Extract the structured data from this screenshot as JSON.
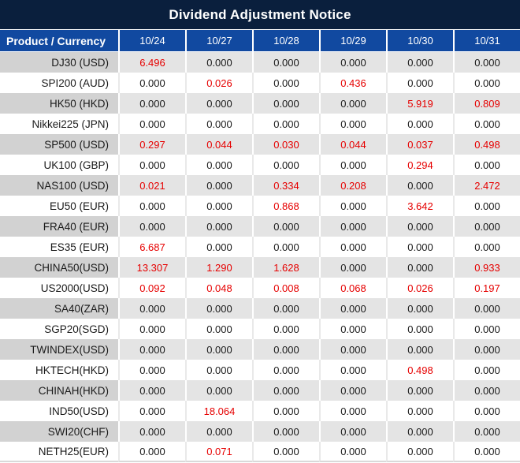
{
  "title": "Dividend Adjustment Notice",
  "colors": {
    "title_bg": "#0a1f3d",
    "header_bg": "#1149a0",
    "header_text": "#ffffff",
    "row_gray_label": "#d2d2d2",
    "row_gray_value": "#e4e4e4",
    "row_white": "#ffffff",
    "value_red": "#e60000",
    "text_dark": "#1a1a1a"
  },
  "table": {
    "product_header": "Product / Currency",
    "date_columns": [
      "10/24",
      "10/27",
      "10/28",
      "10/29",
      "10/30",
      "10/31"
    ],
    "rows": [
      {
        "label": "DJ30 (USD)",
        "cells": [
          {
            "v": "6.496",
            "red": true
          },
          {
            "v": "0.000",
            "red": false
          },
          {
            "v": "0.000",
            "red": false
          },
          {
            "v": "0.000",
            "red": false
          },
          {
            "v": "0.000",
            "red": false
          },
          {
            "v": "0.000",
            "red": false
          }
        ]
      },
      {
        "label": "SPI200 (AUD)",
        "cells": [
          {
            "v": "0.000",
            "red": false
          },
          {
            "v": "0.026",
            "red": true
          },
          {
            "v": "0.000",
            "red": false
          },
          {
            "v": "0.436",
            "red": true
          },
          {
            "v": "0.000",
            "red": false
          },
          {
            "v": "0.000",
            "red": false
          }
        ]
      },
      {
        "label": "HK50 (HKD)",
        "cells": [
          {
            "v": "0.000",
            "red": false
          },
          {
            "v": "0.000",
            "red": false
          },
          {
            "v": "0.000",
            "red": false
          },
          {
            "v": "0.000",
            "red": false
          },
          {
            "v": "5.919",
            "red": true
          },
          {
            "v": "0.809",
            "red": true
          }
        ]
      },
      {
        "label": "Nikkei225 (JPN)",
        "cells": [
          {
            "v": "0.000",
            "red": false
          },
          {
            "v": "0.000",
            "red": false
          },
          {
            "v": "0.000",
            "red": false
          },
          {
            "v": "0.000",
            "red": false
          },
          {
            "v": "0.000",
            "red": false
          },
          {
            "v": "0.000",
            "red": false
          }
        ]
      },
      {
        "label": "SP500 (USD)",
        "cells": [
          {
            "v": "0.297",
            "red": true
          },
          {
            "v": "0.044",
            "red": true
          },
          {
            "v": "0.030",
            "red": true
          },
          {
            "v": "0.044",
            "red": true
          },
          {
            "v": "0.037",
            "red": true
          },
          {
            "v": "0.498",
            "red": true
          }
        ]
      },
      {
        "label": "UK100 (GBP)",
        "cells": [
          {
            "v": "0.000",
            "red": false
          },
          {
            "v": "0.000",
            "red": false
          },
          {
            "v": "0.000",
            "red": false
          },
          {
            "v": "0.000",
            "red": false
          },
          {
            "v": "0.294",
            "red": true
          },
          {
            "v": "0.000",
            "red": false
          }
        ]
      },
      {
        "label": "NAS100 (USD)",
        "cells": [
          {
            "v": "0.021",
            "red": true
          },
          {
            "v": "0.000",
            "red": false
          },
          {
            "v": "0.334",
            "red": true
          },
          {
            "v": "0.208",
            "red": true
          },
          {
            "v": "0.000",
            "red": false
          },
          {
            "v": "2.472",
            "red": true
          }
        ]
      },
      {
        "label": "EU50 (EUR)",
        "cells": [
          {
            "v": "0.000",
            "red": false
          },
          {
            "v": "0.000",
            "red": false
          },
          {
            "v": "0.868",
            "red": true
          },
          {
            "v": "0.000",
            "red": false
          },
          {
            "v": "3.642",
            "red": true
          },
          {
            "v": "0.000",
            "red": false
          }
        ]
      },
      {
        "label": "FRA40 (EUR)",
        "cells": [
          {
            "v": "0.000",
            "red": false
          },
          {
            "v": "0.000",
            "red": false
          },
          {
            "v": "0.000",
            "red": false
          },
          {
            "v": "0.000",
            "red": false
          },
          {
            "v": "0.000",
            "red": false
          },
          {
            "v": "0.000",
            "red": false
          }
        ]
      },
      {
        "label": "ES35 (EUR)",
        "cells": [
          {
            "v": "6.687",
            "red": true
          },
          {
            "v": "0.000",
            "red": false
          },
          {
            "v": "0.000",
            "red": false
          },
          {
            "v": "0.000",
            "red": false
          },
          {
            "v": "0.000",
            "red": false
          },
          {
            "v": "0.000",
            "red": false
          }
        ]
      },
      {
        "label": "CHINA50(USD)",
        "cells": [
          {
            "v": "13.307",
            "red": true
          },
          {
            "v": "1.290",
            "red": true
          },
          {
            "v": "1.628",
            "red": true
          },
          {
            "v": "0.000",
            "red": false
          },
          {
            "v": "0.000",
            "red": false
          },
          {
            "v": "0.933",
            "red": true
          }
        ]
      },
      {
        "label": "US2000(USD)",
        "cells": [
          {
            "v": "0.092",
            "red": true
          },
          {
            "v": "0.048",
            "red": true
          },
          {
            "v": "0.008",
            "red": true
          },
          {
            "v": "0.068",
            "red": true
          },
          {
            "v": "0.026",
            "red": true
          },
          {
            "v": "0.197",
            "red": true
          }
        ]
      },
      {
        "label": "SA40(ZAR)",
        "cells": [
          {
            "v": "0.000",
            "red": false
          },
          {
            "v": "0.000",
            "red": false
          },
          {
            "v": "0.000",
            "red": false
          },
          {
            "v": "0.000",
            "red": false
          },
          {
            "v": "0.000",
            "red": false
          },
          {
            "v": "0.000",
            "red": false
          }
        ]
      },
      {
        "label": "SGP20(SGD)",
        "cells": [
          {
            "v": "0.000",
            "red": false
          },
          {
            "v": "0.000",
            "red": false
          },
          {
            "v": "0.000",
            "red": false
          },
          {
            "v": "0.000",
            "red": false
          },
          {
            "v": "0.000",
            "red": false
          },
          {
            "v": "0.000",
            "red": false
          }
        ]
      },
      {
        "label": "TWINDEX(USD)",
        "cells": [
          {
            "v": "0.000",
            "red": false
          },
          {
            "v": "0.000",
            "red": false
          },
          {
            "v": "0.000",
            "red": false
          },
          {
            "v": "0.000",
            "red": false
          },
          {
            "v": "0.000",
            "red": false
          },
          {
            "v": "0.000",
            "red": false
          }
        ]
      },
      {
        "label": "HKTECH(HKD)",
        "cells": [
          {
            "v": "0.000",
            "red": false
          },
          {
            "v": "0.000",
            "red": false
          },
          {
            "v": "0.000",
            "red": false
          },
          {
            "v": "0.000",
            "red": false
          },
          {
            "v": "0.498",
            "red": true
          },
          {
            "v": "0.000",
            "red": false
          }
        ]
      },
      {
        "label": "CHINAH(HKD)",
        "cells": [
          {
            "v": "0.000",
            "red": false
          },
          {
            "v": "0.000",
            "red": false
          },
          {
            "v": "0.000",
            "red": false
          },
          {
            "v": "0.000",
            "red": false
          },
          {
            "v": "0.000",
            "red": false
          },
          {
            "v": "0.000",
            "red": false
          }
        ]
      },
      {
        "label": "IND50(USD)",
        "cells": [
          {
            "v": "0.000",
            "red": false
          },
          {
            "v": "18.064",
            "red": true
          },
          {
            "v": "0.000",
            "red": false
          },
          {
            "v": "0.000",
            "red": false
          },
          {
            "v": "0.000",
            "red": false
          },
          {
            "v": "0.000",
            "red": false
          }
        ]
      },
      {
        "label": "SWI20(CHF)",
        "cells": [
          {
            "v": "0.000",
            "red": false
          },
          {
            "v": "0.000",
            "red": false
          },
          {
            "v": "0.000",
            "red": false
          },
          {
            "v": "0.000",
            "red": false
          },
          {
            "v": "0.000",
            "red": false
          },
          {
            "v": "0.000",
            "red": false
          }
        ]
      },
      {
        "label": "NETH25(EUR)",
        "cells": [
          {
            "v": "0.000",
            "red": false
          },
          {
            "v": "0.071",
            "red": true
          },
          {
            "v": "0.000",
            "red": false
          },
          {
            "v": "0.000",
            "red": false
          },
          {
            "v": "0.000",
            "red": false
          },
          {
            "v": "0.000",
            "red": false
          }
        ]
      }
    ]
  }
}
